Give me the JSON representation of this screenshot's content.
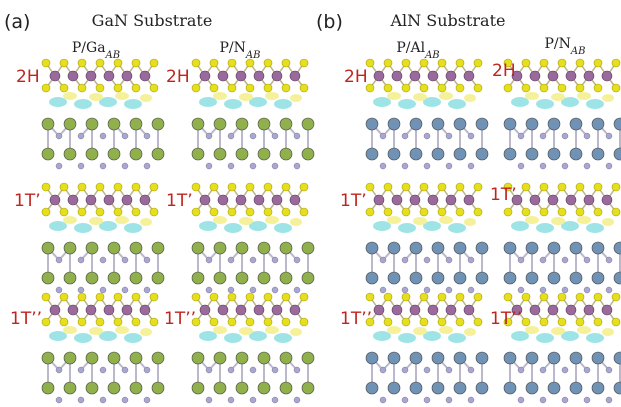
{
  "panels": [
    {
      "label": "(a)",
      "title": "GaN Substrate",
      "columns": [
        {
          "label": "P/Ga",
          "sub": "AB"
        },
        {
          "label": "P/N",
          "sub": "AB"
        }
      ],
      "rows": [
        "2H",
        "1T’",
        "1T’’"
      ]
    },
    {
      "label": "(b)",
      "title": "AlN Substrate",
      "columns": [
        {
          "label": "P/Al",
          "sub": "AB"
        },
        {
          "label": "P/N",
          "sub": "AB"
        }
      ],
      "rows": [
        "2H",
        "1T’",
        "1T’’"
      ]
    }
  ]
}
